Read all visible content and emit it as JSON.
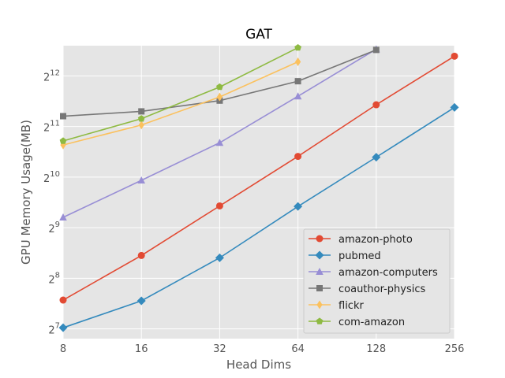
{
  "chart_data": {
    "type": "line",
    "title": "GAT",
    "xlabel": "Head Dims",
    "ylabel": "GPU Memory Usage(MB)",
    "x": [
      8,
      16,
      32,
      64,
      128,
      256
    ],
    "x_scale": "log2",
    "y_scale": "log2",
    "xlim": [
      8,
      256
    ],
    "ylim": [
      112,
      6200
    ],
    "x_ticks": [
      {
        "value": 8,
        "label": "8"
      },
      {
        "value": 16,
        "label": "16"
      },
      {
        "value": 32,
        "label": "32"
      },
      {
        "value": 64,
        "label": "64"
      },
      {
        "value": 128,
        "label": "128"
      },
      {
        "value": 256,
        "label": "256"
      }
    ],
    "y_ticks": [
      {
        "value": 128,
        "base": "2",
        "exp": "7"
      },
      {
        "value": 256,
        "base": "2",
        "exp": "8"
      },
      {
        "value": 512,
        "base": "2",
        "exp": "9"
      },
      {
        "value": 1024,
        "base": "2",
        "exp": "10"
      },
      {
        "value": 2048,
        "base": "2",
        "exp": "11"
      },
      {
        "value": 4096,
        "base": "2",
        "exp": "12"
      }
    ],
    "grid": true,
    "legend_position": "lower-right",
    "series": [
      {
        "name": "amazon-photo",
        "color": "#E24A33",
        "marker": "circle",
        "values": [
          190,
          350,
          690,
          1360,
          2760,
          5370
        ]
      },
      {
        "name": "pubmed",
        "color": "#348ABD",
        "marker": "diamond",
        "values": [
          130,
          188,
          339,
          685,
          1345,
          2660
        ]
      },
      {
        "name": "amazon-computers",
        "color": "#988ED5",
        "marker": "triangle",
        "values": [
          590,
          980,
          1640,
          3100,
          5910,
          null
        ]
      },
      {
        "name": "coauthor-physics",
        "color": "#777777",
        "marker": "square",
        "values": [
          2360,
          2520,
          2920,
          3810,
          5850,
          null
        ]
      },
      {
        "name": "flickr",
        "color": "#FBC15E",
        "marker": "thin-diamond",
        "values": [
          1590,
          2090,
          3070,
          4970,
          null,
          null
        ]
      },
      {
        "name": "com-amazon",
        "color": "#8EBA42",
        "marker": "pentagon",
        "values": [
          1680,
          2280,
          3520,
          6030,
          null,
          null
        ]
      }
    ]
  }
}
